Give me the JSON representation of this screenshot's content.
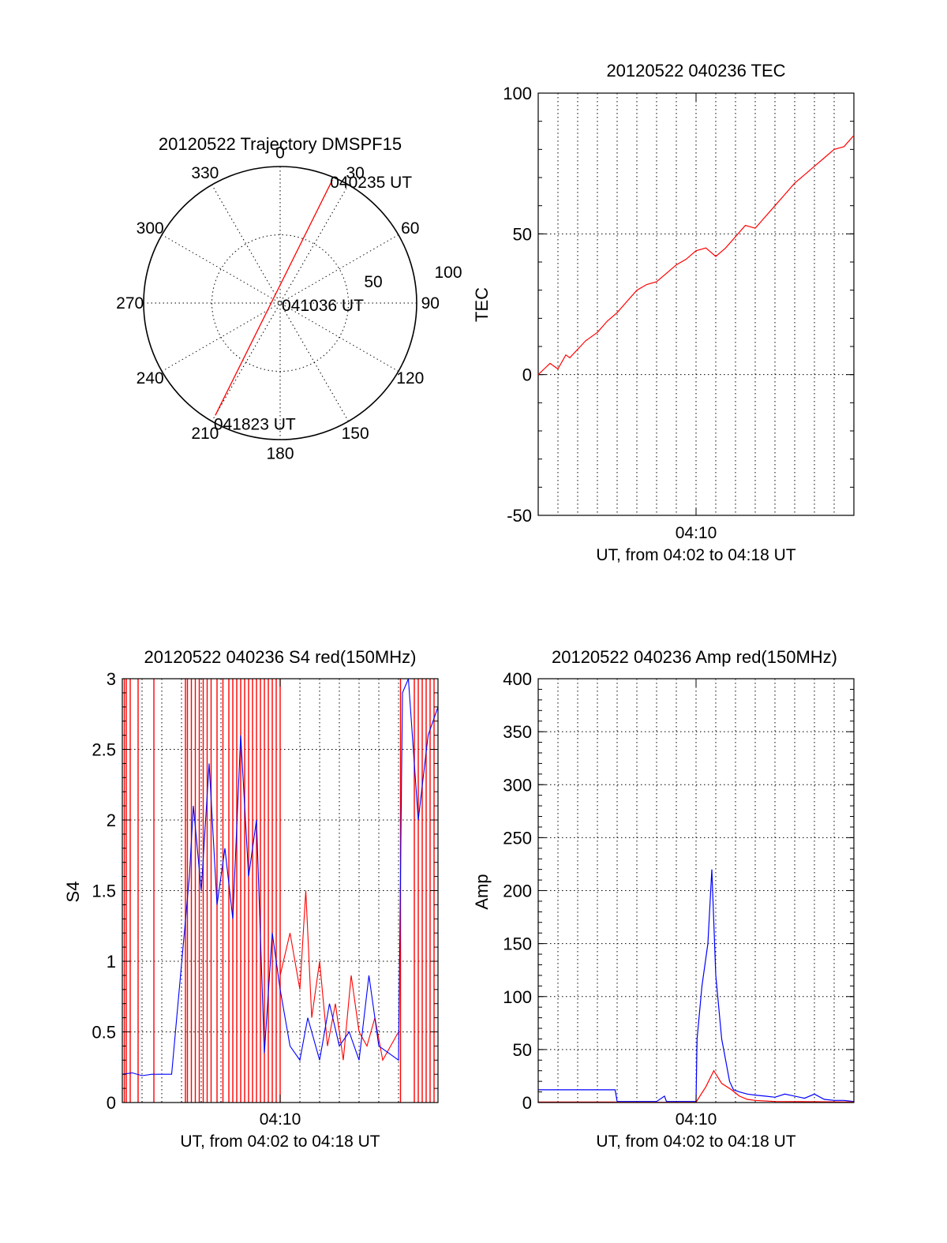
{
  "colors": {
    "red": "#ff0000",
    "blue": "#0000ff"
  },
  "chart_data": [
    {
      "id": "trajectory",
      "type": "polar",
      "title": "20120522 Trajectory DMSPF15",
      "angle_labels": [
        "0",
        "30",
        "60",
        "90",
        "120",
        "150",
        "180",
        "210",
        "240",
        "270",
        "300",
        "330"
      ],
      "radius_labels": [
        "50",
        "100"
      ],
      "rlim": [
        0,
        100
      ],
      "track": {
        "start": [
          23,
          98
        ],
        "end": [
          210,
          95
        ]
      },
      "annotations": [
        {
          "text": "040235 UT",
          "az": 23,
          "r": 98
        },
        {
          "text": "041036 UT",
          "az": 0,
          "r": 0
        },
        {
          "text": "041823 UT",
          "az": 210,
          "r": 95
        }
      ]
    },
    {
      "id": "tec",
      "type": "line",
      "title": "20120522 040236 TEC",
      "ylabel": "TEC",
      "xlabel": "UT, from 04:02 to 04:18 UT",
      "xtick": "04:10",
      "ylim": [
        -50,
        100
      ],
      "yticks": [
        "-50",
        "0",
        "50",
        "100"
      ],
      "x": [
        0,
        0.3,
        0.6,
        0.8,
        1.0,
        1.4,
        1.6,
        2.0,
        2.4,
        3.0,
        3.5,
        4.0,
        4.5,
        5.0,
        5.5,
        6.0,
        6.5,
        7.0,
        7.5,
        8.0,
        8.5,
        9.0,
        9.5,
        10.0,
        10.5,
        11.0,
        11.5,
        12.0,
        12.5,
        13.0,
        13.5,
        14.0,
        14.5,
        15.0,
        15.5,
        16.0
      ],
      "y": [
        0,
        2,
        4,
        3,
        2,
        7,
        6,
        9,
        12,
        15,
        19,
        22,
        26,
        30,
        32,
        33,
        36,
        39,
        41,
        44,
        45,
        42,
        45,
        49,
        53,
        52,
        56,
        60,
        64,
        68,
        71,
        74,
        77,
        80,
        81,
        85
      ]
    },
    {
      "id": "s4",
      "type": "line",
      "title": "20120522 040236 S4 red(150MHz)",
      "ylabel": "S4",
      "xlabel": "UT, from 04:02 to 04:18 UT",
      "xtick": "04:10",
      "ylim": [
        0,
        3
      ],
      "yticks": [
        "0",
        "0.5",
        "1",
        "1.5",
        "2",
        "2.5",
        "3"
      ],
      "series": [
        {
          "color": "red",
          "spikes_x": [
            0.1,
            0.2,
            0.4,
            0.8,
            1.6,
            3.2,
            3.3,
            3.5,
            3.7,
            3.9,
            4.1,
            4.3,
            4.5,
            4.8,
            5.1,
            5.4,
            5.6,
            5.8,
            6.0,
            6.2,
            6.4,
            6.6,
            6.8,
            7.0,
            7.2,
            7.4,
            7.6,
            7.8,
            8.0,
            14.1,
            14.8,
            15.0,
            15.2,
            15.4,
            15.6,
            15.8
          ],
          "x": [
            8.0,
            8.5,
            9.0,
            9.3,
            9.6,
            10.0,
            10.4,
            10.8,
            11.2,
            11.6,
            12.0,
            12.4,
            12.8,
            13.2,
            13.6,
            14.0
          ],
          "y": [
            0.9,
            1.2,
            0.8,
            1.5,
            0.6,
            1.0,
            0.4,
            0.7,
            0.3,
            0.9,
            0.5,
            0.4,
            0.6,
            0.3,
            0.4,
            0.5
          ]
        },
        {
          "color": "blue",
          "x": [
            0.0,
            0.5,
            1.0,
            1.5,
            2.0,
            2.5,
            3.4,
            3.6,
            4.0,
            4.4,
            4.8,
            5.2,
            5.6,
            6.0,
            6.4,
            6.8,
            7.2,
            7.6,
            8.0,
            8.5,
            9.0,
            9.4,
            10.0,
            10.5,
            11.0,
            11.5,
            12.0,
            12.5,
            13.0,
            13.5,
            14.0,
            14.2,
            14.5,
            15.0,
            15.5,
            16.0
          ],
          "y": [
            0.2,
            0.21,
            0.19,
            0.2,
            0.2,
            0.2,
            1.6,
            2.1,
            1.5,
            2.4,
            1.4,
            1.8,
            1.3,
            2.6,
            1.6,
            2.0,
            0.35,
            1.2,
            0.8,
            0.4,
            0.3,
            0.6,
            0.3,
            0.7,
            0.4,
            0.5,
            0.3,
            0.9,
            0.4,
            0.35,
            0.3,
            2.9,
            3.0,
            2.0,
            2.6,
            2.8
          ]
        }
      ]
    },
    {
      "id": "amp",
      "type": "line",
      "title": "20120522 040236 Amp red(150MHz)",
      "ylabel": "Amp",
      "xlabel": "UT, from 04:02 to 04:18 UT",
      "xtick": "04:10",
      "ylim": [
        0,
        400
      ],
      "yticks": [
        "0",
        "50",
        "100",
        "150",
        "200",
        "250",
        "300",
        "350",
        "400"
      ],
      "series": [
        {
          "color": "blue",
          "x": [
            0.0,
            3.9,
            4.0,
            6.0,
            6.4,
            6.5,
            8.0,
            8.05,
            8.3,
            8.6,
            8.8,
            9.0,
            9.1,
            9.3,
            9.5,
            9.7,
            9.9,
            10.2,
            10.6,
            11.0,
            11.5,
            12.0,
            12.5,
            13.0,
            13.5,
            14.0,
            14.5,
            15.0,
            15.5,
            16.0
          ],
          "y": [
            12,
            12,
            1,
            1,
            6,
            1,
            1,
            60,
            110,
            150,
            220,
            120,
            100,
            60,
            40,
            20,
            12,
            10,
            8,
            7,
            6,
            5,
            8,
            6,
            4,
            8,
            3,
            2,
            2,
            1
          ]
        },
        {
          "color": "red",
          "x": [
            0.0,
            3.9,
            4.0,
            8.0,
            8.5,
            8.9,
            9.3,
            9.8,
            10.2,
            10.6,
            11.0,
            12.0,
            16.0
          ],
          "y": [
            0.5,
            0.5,
            0.2,
            0.3,
            15,
            30,
            18,
            12,
            6,
            3,
            2,
            1,
            0.5
          ]
        }
      ]
    }
  ]
}
